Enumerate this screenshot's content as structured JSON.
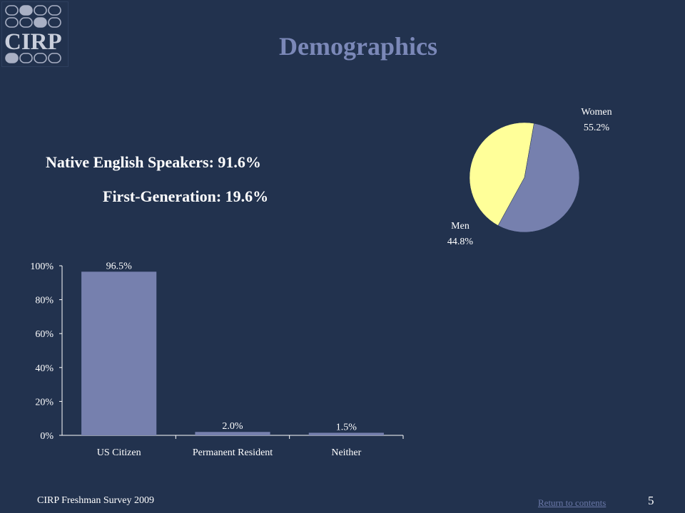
{
  "logo": {
    "text": "CIRP"
  },
  "title": "Demographics",
  "stats": {
    "native_english": "Native English Speakers: 91.6%",
    "first_generation": "First-Generation: 19.6%"
  },
  "chart_data": [
    {
      "type": "pie",
      "slices": [
        {
          "label": "Women",
          "value": 55.2,
          "value_label": "55.2%",
          "color": "#7680ae"
        },
        {
          "label": "Men",
          "value": 44.8,
          "value_label": "44.8%",
          "color": "#ffff99"
        }
      ]
    },
    {
      "type": "bar",
      "categories": [
        "US Citizen",
        "Permanent Resident",
        "Neither"
      ],
      "values": [
        96.5,
        2.0,
        1.5
      ],
      "data_labels": [
        "96.5%",
        "2.0%",
        "1.5%"
      ],
      "ylim": [
        0,
        100
      ],
      "yticks": [
        "0%",
        "20%",
        "40%",
        "60%",
        "80%",
        "100%"
      ],
      "bar_color": "#7680ae",
      "grid": false
    }
  ],
  "footer": {
    "left": "CIRP Freshman Survey 2009",
    "link": "Return to contents",
    "page": "5"
  }
}
